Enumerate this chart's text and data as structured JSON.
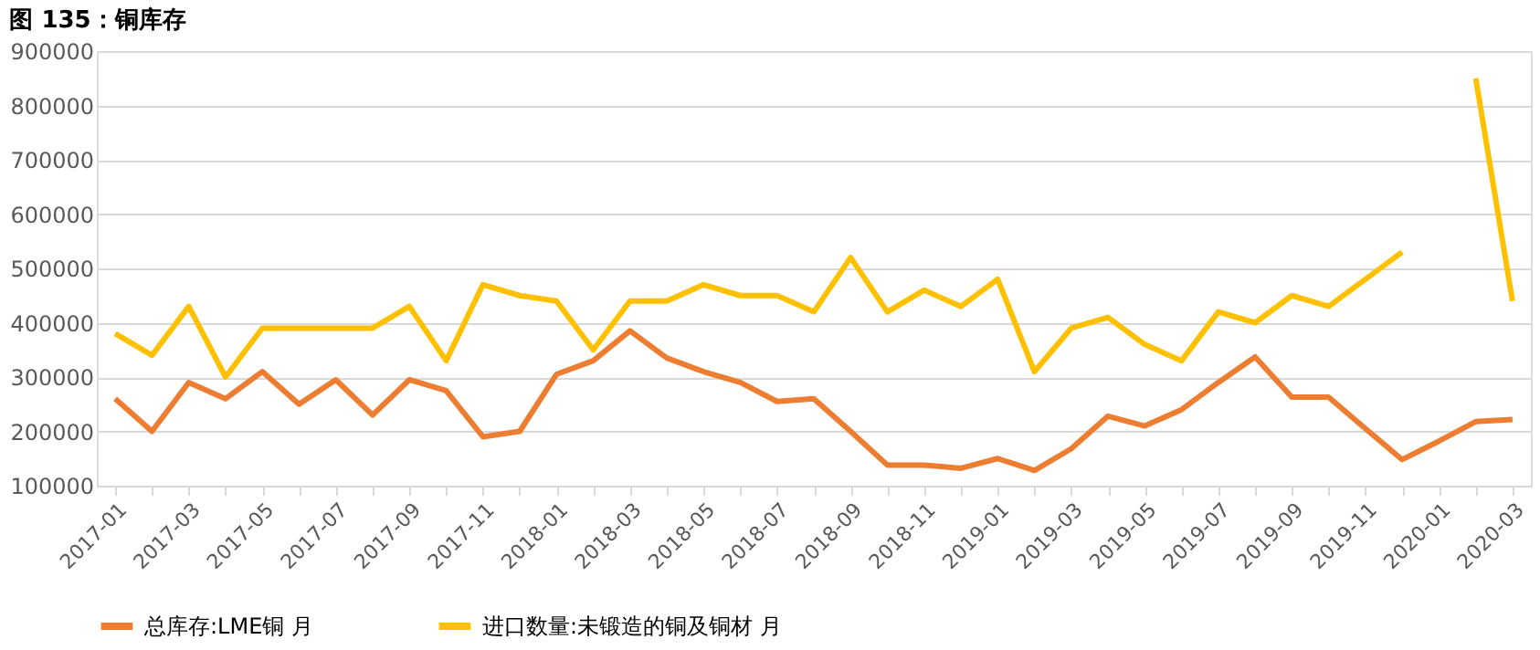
{
  "chart_data": {
    "type": "line",
    "title": "图 135：铜库存",
    "categories": [
      "2017-01",
      null,
      "2017-03",
      null,
      "2017-05",
      null,
      "2017-07",
      null,
      "2017-09",
      null,
      "2017-11",
      null,
      "2018-01",
      null,
      "2018-03",
      null,
      "2018-05",
      null,
      "2018-07",
      null,
      "2018-09",
      null,
      "2018-11",
      null,
      "2019-01",
      null,
      "2019-03",
      null,
      "2019-05",
      null,
      "2019-07",
      null,
      "2019-09",
      null,
      "2019-11",
      null,
      "2020-01",
      null,
      "2020-03"
    ],
    "series": [
      {
        "name": "总库存:LME铜 月",
        "color": "#ed7d31",
        "values": [
          260000,
          200000,
          290000,
          260000,
          310000,
          250000,
          295000,
          230000,
          295000,
          275000,
          190000,
          200000,
          305000,
          330000,
          385000,
          335000,
          310000,
          290000,
          255000,
          260000,
          200000,
          138000,
          138000,
          132000,
          150000,
          128000,
          168000,
          228000,
          210000,
          240000,
          290000,
          337000,
          263000,
          263000,
          205000,
          148000,
          182000,
          218000,
          222000
        ]
      },
      {
        "name": "进口数量:未锻造的铜及铜材 月",
        "color": "#ffc000",
        "values": [
          380000,
          340000,
          430000,
          300000,
          390000,
          390000,
          390000,
          390000,
          430000,
          330000,
          470000,
          450000,
          440000,
          350000,
          440000,
          440000,
          470000,
          450000,
          450000,
          420000,
          520000,
          420000,
          460000,
          430000,
          480000,
          310000,
          390000,
          410000,
          360000,
          330000,
          420000,
          400000,
          450000,
          430000,
          480000,
          530000,
          null,
          850000,
          440000
        ]
      }
    ],
    "ylim": [
      100000,
      900000
    ],
    "yticks": [
      100000,
      200000,
      300000,
      400000,
      500000,
      600000,
      700000,
      800000,
      900000
    ],
    "grid": "y",
    "legend": "bottom",
    "marker": "none",
    "line_style": "solid"
  }
}
